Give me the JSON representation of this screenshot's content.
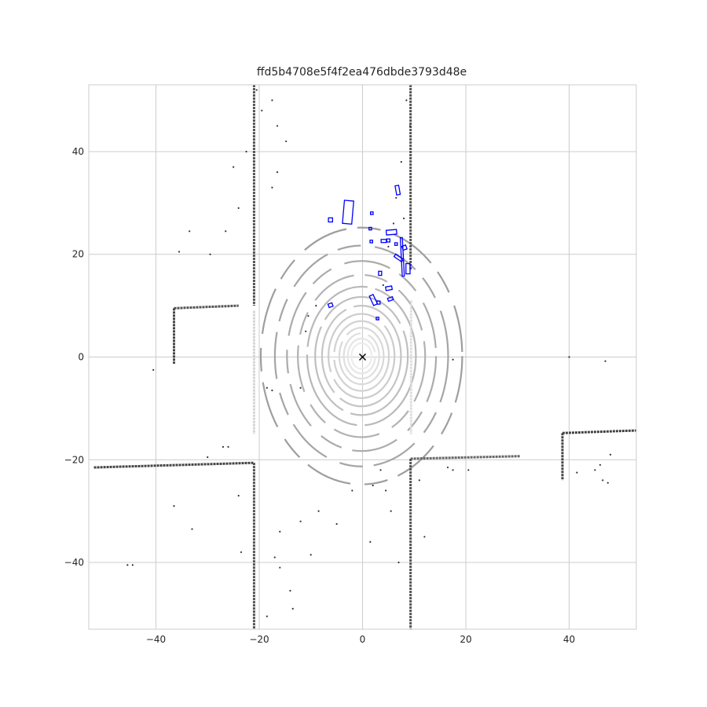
{
  "chart_data": {
    "type": "scatter",
    "title": "ffd5b4708e5f4f2ea476dbde3793d48e",
    "xlabel": "",
    "ylabel": "",
    "xlim": [
      -53,
      53
    ],
    "ylim": [
      -53,
      53
    ],
    "grid": true,
    "x_ticks": [
      -40,
      -20,
      0,
      20,
      40
    ],
    "y_ticks": [
      -40,
      -20,
      0,
      20,
      40
    ],
    "x_tick_labels": [
      "−40",
      "−20",
      "0",
      "20",
      "40"
    ],
    "y_tick_labels": [
      "−40",
      "−20",
      "0",
      "20",
      "40"
    ],
    "colors": {
      "background": "#ffffff",
      "grid": "#cccccc",
      "boxes": "#0000ff",
      "ego": "#000000"
    },
    "ego_marker": {
      "x": 0,
      "y": 0,
      "symbol": "x"
    },
    "wall_lines": [
      {
        "points": [
          [
            -21,
            53
          ],
          [
            -21,
            10
          ]
        ],
        "color": "#555555"
      },
      {
        "points": [
          [
            -36.5,
            9.5
          ],
          [
            -36.5,
            -1.3
          ]
        ],
        "color": "#444444"
      },
      {
        "points": [
          [
            -36.5,
            9.5
          ],
          [
            -24,
            10
          ]
        ],
        "color": "#555555"
      },
      {
        "points": [
          [
            -52,
            -21.5
          ],
          [
            -21,
            -20.6
          ]
        ],
        "color": "#444444"
      },
      {
        "points": [
          [
            -21,
            -20.6
          ],
          [
            -21,
            -53
          ]
        ],
        "color": "#555555"
      },
      {
        "points": [
          [
            9.3,
            53
          ],
          [
            9.3,
            17
          ]
        ],
        "color": "#555555"
      },
      {
        "points": [
          [
            9.3,
            -19.8
          ],
          [
            30.5,
            -19.3
          ]
        ],
        "color": "#666666"
      },
      {
        "points": [
          [
            9.3,
            -19.8
          ],
          [
            9.3,
            -53
          ]
        ],
        "color": "#555555"
      },
      {
        "points": [
          [
            38.7,
            -14.8
          ],
          [
            53,
            -14.3
          ]
        ],
        "color": "#444444"
      },
      {
        "points": [
          [
            38.7,
            -14.8
          ],
          [
            38.7,
            -24
          ]
        ],
        "color": "#444444"
      },
      {
        "points": [
          [
            9.4,
            11
          ],
          [
            9.4,
            -15
          ]
        ],
        "color": "#dddddd"
      },
      {
        "points": [
          [
            -21,
            9
          ],
          [
            -21,
            -15
          ]
        ],
        "color": "#d5d5d5"
      }
    ],
    "ring_radii": [
      2.5,
      3.4,
      4.4,
      5.5,
      6.8,
      8.2,
      9.8,
      11.5,
      13.5,
      15.8,
      18.5,
      21.5,
      25
    ],
    "scatter_points": [
      [
        -20.5,
        52
      ],
      [
        -19.5,
        48
      ],
      [
        -17.5,
        50
      ],
      [
        -16.5,
        45
      ],
      [
        -14.8,
        42
      ],
      [
        -16.5,
        36
      ],
      [
        -17.5,
        33
      ],
      [
        -25,
        37
      ],
      [
        -22.5,
        40
      ],
      [
        -24,
        29
      ],
      [
        -33.5,
        24.5
      ],
      [
        -35.5,
        20.5
      ],
      [
        -29.5,
        20
      ],
      [
        -26.5,
        24.5
      ],
      [
        -40.5,
        -2.5
      ],
      [
        -45.5,
        -40.5
      ],
      [
        -44.5,
        -40.5
      ],
      [
        -33,
        -33.5
      ],
      [
        -36.5,
        -29
      ],
      [
        -30,
        -19.5
      ],
      [
        -27,
        -17.5
      ],
      [
        -26,
        -17.5
      ],
      [
        -24,
        -27
      ],
      [
        -23.5,
        -38
      ],
      [
        -17,
        -39
      ],
      [
        -16,
        -34
      ],
      [
        -14,
        -45.5
      ],
      [
        -12,
        -32
      ],
      [
        -10,
        -38.5
      ],
      [
        -18.5,
        -6
      ],
      [
        -17.5,
        -6.5
      ],
      [
        -12,
        -6
      ],
      [
        -10.5,
        8
      ],
      [
        -11,
        5
      ],
      [
        -9,
        10
      ],
      [
        8.5,
        50
      ],
      [
        9.2,
        45
      ],
      [
        7.5,
        38
      ],
      [
        6.5,
        31
      ],
      [
        8,
        27
      ],
      [
        6,
        26
      ],
      [
        5,
        21.5
      ],
      [
        4,
        14
      ],
      [
        16.5,
        -21.5
      ],
      [
        17.5,
        -22
      ],
      [
        20.5,
        -22
      ],
      [
        17.5,
        -0.5
      ],
      [
        11,
        -24
      ],
      [
        40,
        0
      ],
      [
        47,
        -0.8
      ],
      [
        41.5,
        -22.5
      ],
      [
        45,
        -22
      ],
      [
        46.5,
        -24
      ],
      [
        47.5,
        -24.5
      ],
      [
        46,
        -21
      ],
      [
        48,
        -19
      ],
      [
        5.5,
        -30
      ],
      [
        4.5,
        -26
      ],
      [
        3.5,
        -22
      ],
      [
        2,
        -25
      ],
      [
        -8.5,
        -30
      ],
      [
        -5,
        -32.5
      ],
      [
        -2,
        -26
      ],
      [
        7,
        -40
      ],
      [
        1.5,
        -36
      ],
      [
        12,
        -35
      ],
      [
        -13.5,
        -49
      ],
      [
        -18.5,
        -50.5
      ],
      [
        -16,
        -41
      ]
    ],
    "boxes": [
      {
        "cx": -2.8,
        "cy": 28.2,
        "w": 1.8,
        "h": 4.5,
        "angle": -5
      },
      {
        "cx": -6.2,
        "cy": 26.7,
        "w": 0.8,
        "h": 0.8,
        "angle": 0
      },
      {
        "cx": 6.8,
        "cy": 32.5,
        "w": 0.7,
        "h": 1.8,
        "angle": 10
      },
      {
        "cx": 5.6,
        "cy": 24.3,
        "w": 2.0,
        "h": 0.9,
        "angle": 5
      },
      {
        "cx": 1.8,
        "cy": 28.0,
        "w": 0.5,
        "h": 0.5,
        "angle": 0
      },
      {
        "cx": 1.5,
        "cy": 25.0,
        "w": 0.5,
        "h": 0.5,
        "angle": 0
      },
      {
        "cx": 1.7,
        "cy": 22.5,
        "w": 0.5,
        "h": 0.5,
        "angle": 0
      },
      {
        "cx": 4.1,
        "cy": 22.6,
        "w": 1.0,
        "h": 0.6,
        "angle": 0
      },
      {
        "cx": 5.0,
        "cy": 22.7,
        "w": 0.6,
        "h": 0.6,
        "angle": 0
      },
      {
        "cx": 6.5,
        "cy": 22.0,
        "w": 0.5,
        "h": 0.5,
        "angle": 0
      },
      {
        "cx": 7.7,
        "cy": 19.5,
        "w": 0.4,
        "h": 7.5,
        "angle": 3
      },
      {
        "cx": 8.1,
        "cy": 21.3,
        "w": 0.8,
        "h": 0.8,
        "angle": 20
      },
      {
        "cx": 7.0,
        "cy": 19.3,
        "w": 1.8,
        "h": 0.6,
        "angle": -35
      },
      {
        "cx": 8.8,
        "cy": 17.2,
        "w": 0.8,
        "h": 2.0,
        "angle": 0
      },
      {
        "cx": 3.4,
        "cy": 16.3,
        "w": 0.6,
        "h": 0.8,
        "angle": 0
      },
      {
        "cx": 5.1,
        "cy": 13.4,
        "w": 1.2,
        "h": 0.7,
        "angle": 10
      },
      {
        "cx": 2.1,
        "cy": 11.1,
        "w": 0.8,
        "h": 2.0,
        "angle": 25
      },
      {
        "cx": 3.1,
        "cy": 10.6,
        "w": 0.6,
        "h": 0.6,
        "angle": 0
      },
      {
        "cx": 5.4,
        "cy": 11.3,
        "w": 1.0,
        "h": 0.6,
        "angle": 20
      },
      {
        "cx": 2.9,
        "cy": 7.5,
        "w": 0.5,
        "h": 0.5,
        "angle": 0
      },
      {
        "cx": -6.2,
        "cy": 10.1,
        "w": 0.8,
        "h": 0.7,
        "angle": 20
      }
    ]
  }
}
